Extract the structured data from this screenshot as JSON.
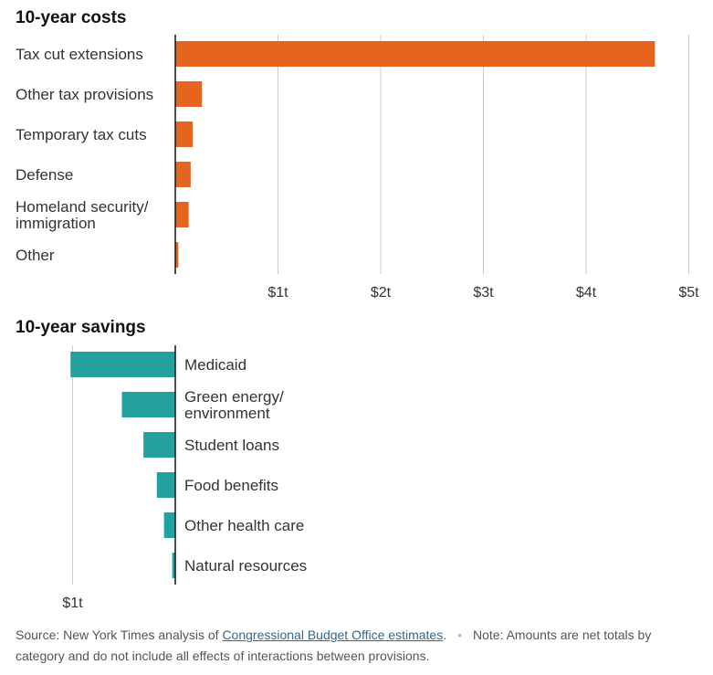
{
  "colors": {
    "costs": "#e5651f",
    "savings": "#23a0a0",
    "grid": "#cccccc",
    "axis": "#121212"
  },
  "chart_data": [
    {
      "type": "bar",
      "orientation": "horizontal",
      "title": "10-year costs",
      "categories": [
        [
          "Tax cut extensions"
        ],
        [
          "Other tax provisions"
        ],
        [
          "Temporary tax cuts"
        ],
        [
          "Defense"
        ],
        [
          "Homeland security/",
          "immigration"
        ],
        [
          "Other"
        ]
      ],
      "values": [
        4.67,
        0.26,
        0.17,
        0.15,
        0.13,
        0.03
      ],
      "unit": "trillion dollars",
      "xlim": [
        0,
        5
      ],
      "ticks": [
        1,
        2,
        3,
        4,
        5
      ],
      "tick_labels": [
        "$1t",
        "$2t",
        "$3t",
        "$4t",
        "$5t"
      ],
      "grid": true
    },
    {
      "type": "bar",
      "orientation": "horizontal",
      "direction": "leftward",
      "title": "10-year savings",
      "categories": [
        [
          "Medicaid"
        ],
        [
          "Green energy/",
          "environment"
        ],
        [
          "Student loans"
        ],
        [
          "Food benefits"
        ],
        [
          "Other health care"
        ],
        [
          "Natural resources"
        ]
      ],
      "values": [
        1.02,
        0.52,
        0.31,
        0.18,
        0.11,
        0.03
      ],
      "unit": "trillion dollars",
      "xlim": [
        0,
        1
      ],
      "ticks": [
        1
      ],
      "tick_labels": [
        "$1t"
      ],
      "grid": true
    }
  ],
  "footer": {
    "source_prefix": "Source: New York Times analysis of ",
    "source_link": "Congressional Budget Office estimates",
    "source_suffix": ".",
    "separator": "•",
    "note": "Note: Amounts are net totals by category and do not include all effects of interactions between provisions."
  }
}
